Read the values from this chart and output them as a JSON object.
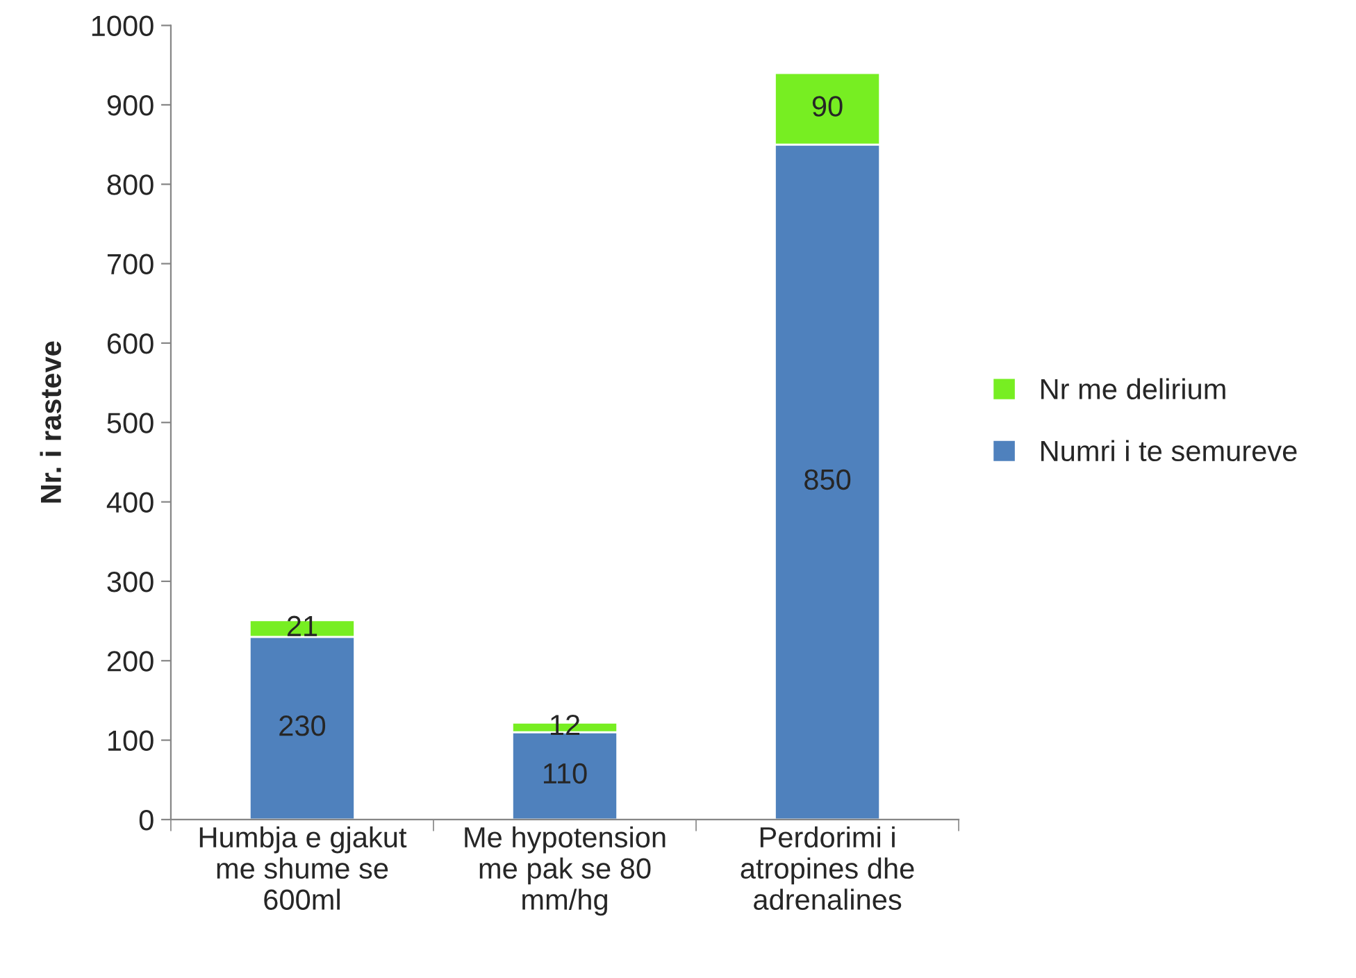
{
  "chart_data": {
    "type": "bar",
    "stacked": true,
    "ylabel": "Nr. i rasteve",
    "categories": [
      "Humbja e gjakut\nme shume se\n600ml",
      "Me hypotension\nme pak se 80\nmm/hg",
      "Perdorimi i\natropines dhe\nadrenalines"
    ],
    "series": [
      {
        "name": "Numri i te semureve",
        "color": "#4f81bd",
        "values": [
          230,
          110,
          850
        ]
      },
      {
        "name": "Nr me delirium",
        "color": "#77ee22",
        "values": [
          21,
          12,
          90
        ]
      }
    ],
    "ylim": [
      0,
      1000
    ],
    "yticks": [
      0,
      100,
      200,
      300,
      400,
      500,
      600,
      700,
      800,
      900,
      1000
    ],
    "data_labels": true,
    "grid": false,
    "legend": "right"
  }
}
